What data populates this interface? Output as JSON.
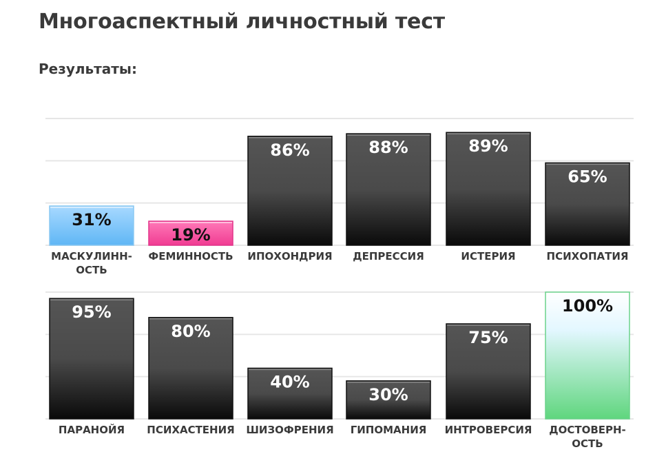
{
  "title": "Многоаспектный личностный тест",
  "subtitle": "Результаты:",
  "chart_data": [
    {
      "type": "bar",
      "ylim": [
        0,
        100
      ],
      "grid": true,
      "categories": [
        [
          "МАСКУЛИНН-",
          "ОСТЬ"
        ],
        [
          "ФЕМИННОСТЬ"
        ],
        [
          "ИПОХОНДРИЯ"
        ],
        [
          "ДЕПРЕССИЯ"
        ],
        [
          "ИСТЕРИЯ"
        ],
        [
          "ПСИХОПАТИЯ"
        ]
      ],
      "values": [
        31,
        19,
        86,
        88,
        89,
        65
      ],
      "value_labels": [
        "31%",
        "19%",
        "86%",
        "88%",
        "89%",
        "65%"
      ],
      "colors": [
        "blue",
        "pink",
        "dark",
        "dark",
        "dark",
        "dark"
      ]
    },
    {
      "type": "bar",
      "ylim": [
        0,
        100
      ],
      "grid": true,
      "categories": [
        [
          "ПАРАНОЙЯ"
        ],
        [
          "ПСИХАСТЕНИЯ"
        ],
        [
          "ШИЗОФРЕНИЯ"
        ],
        [
          "ГИПОМАНИЯ"
        ],
        [
          "ИНТРОВЕРСИЯ"
        ],
        [
          "ДОСТОВЕРН-",
          "ОСТЬ"
        ]
      ],
      "values": [
        95,
        80,
        40,
        30,
        75,
        100
      ],
      "value_labels": [
        "95%",
        "80%",
        "40%",
        "30%",
        "75%",
        "100%"
      ],
      "colors": [
        "dark",
        "dark",
        "dark",
        "dark",
        "dark",
        "green"
      ]
    }
  ]
}
